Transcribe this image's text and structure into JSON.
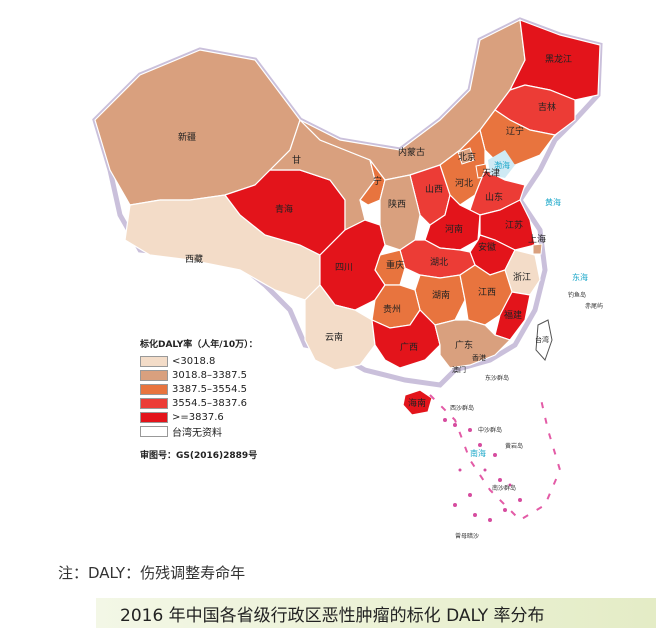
{
  "legend": {
    "title": "标化DALY率（人年/10万）：",
    "items": [
      {
        "label": "<3018.8",
        "color": "#f3dcc8"
      },
      {
        "label": "3018.8–3387.5",
        "color": "#d9a07e"
      },
      {
        "label": "3387.5–3554.5",
        "color": "#e8743e"
      },
      {
        "label": "3554.5–3837.6",
        "color": "#ec3c36"
      },
      {
        "label": ">=3837.6",
        "color": "#e3141b"
      },
      {
        "label": "台湾无资料",
        "color": "#ffffff"
      }
    ],
    "review_no": "审图号：GS(2016)2889号"
  },
  "provinces": {
    "xinjiang": "新疆",
    "xizang": "西藏",
    "qinghai": "青海",
    "gansu": "甘",
    "neimenggu": "内蒙古",
    "heilongjiang": "黑龙江",
    "jilin": "吉林",
    "liaoning": "辽宁",
    "hebei": "河北",
    "beijing": "北京",
    "tianjin": "天津",
    "shanxi": "山西",
    "shaanxi": "陕西",
    "ningxia": "宁",
    "shandong": "山东",
    "henan": "河南",
    "jiangsu": "江苏",
    "anhui": "安徽",
    "shanghai": "上海",
    "zhejiang": "浙江",
    "sichuan": "四川",
    "chongqing": "重庆",
    "hubei": "湖北",
    "hunan": "湖南",
    "jiangxi": "江西",
    "fujian": "福建",
    "guizhou": "贵州",
    "yunnan": "云南",
    "guangxi": "广西",
    "guangdong": "广东",
    "hainan": "海南",
    "taiwan": "台湾",
    "hongkong": "香港",
    "macau": "澳门"
  },
  "seas": {
    "bohai": "渤海",
    "huanghai": "黄海",
    "donghai": "东海",
    "nanhai": "南海"
  },
  "islands": {
    "dongsha": "东沙群岛",
    "xisha": "西沙群岛",
    "zhongsha": "中沙群岛",
    "huangyan": "黄岩岛",
    "nansha": "南沙群岛",
    "zengmu": "曾母暗沙",
    "diaoyu": "钓鱼岛",
    "chiwei": "赤尾屿"
  },
  "note": "注：DALY：伤残调整寿命年",
  "caption": "2016 年中国各省级行政区恶性肿瘤的标化 DALY 率分布"
}
